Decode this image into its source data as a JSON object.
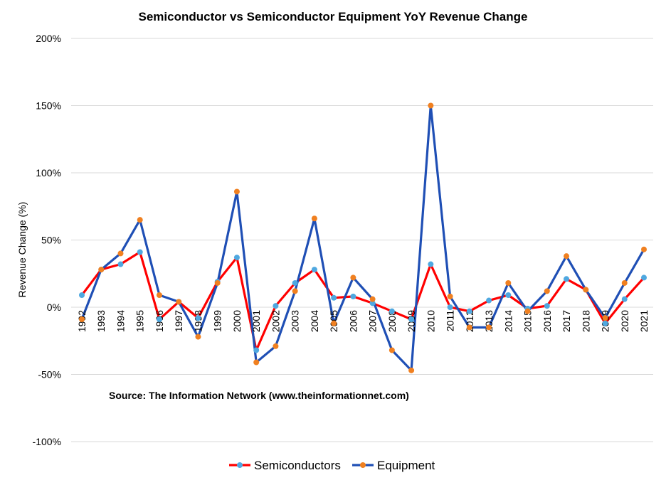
{
  "chart_data": {
    "type": "line",
    "title": "Semiconductor vs Semiconductor Equipment YoY Revenue Change",
    "xlabel": "",
    "ylabel": "Revenue   Change (%)",
    "ylim": [
      -100,
      200
    ],
    "ytick_values": [
      -100,
      -50,
      0,
      50,
      100,
      150,
      200
    ],
    "ytick_labels": [
      "-100%",
      "-50%",
      "0%",
      "50%",
      "100%",
      "150%",
      "200%"
    ],
    "grid": true,
    "legend_position": "bottom",
    "annotation": "Source: The Information Network (www.theinformationnet.com)",
    "categories": [
      "1992",
      "1993",
      "1994",
      "1995",
      "1996",
      "1997",
      "1998",
      "1999",
      "2000",
      "2001",
      "2002",
      "2003",
      "2004",
      "2005",
      "2006",
      "2007",
      "2008",
      "2009",
      "2010",
      "2011",
      "2012",
      "2013",
      "2014",
      "2015",
      "2016",
      "2017",
      "2018",
      "2019",
      "2020",
      "2021"
    ],
    "series": [
      {
        "name": "Semiconductors",
        "line_color": "#ff0000",
        "marker_color": "#4fa8e0",
        "values": [
          9,
          28,
          32,
          41,
          -9,
          4,
          -8,
          19,
          37,
          -32,
          1,
          18,
          28,
          7,
          8,
          3,
          -3,
          -9,
          32,
          0,
          -3,
          5,
          9,
          -1,
          1,
          21,
          13,
          -12,
          6,
          22
        ]
      },
      {
        "name": "Equipment",
        "line_color": "#1f4fb5",
        "marker_color": "#f08020",
        "values": [
          -9,
          28,
          40,
          65,
          9,
          4,
          -22,
          18,
          86,
          -41,
          -29,
          12,
          66,
          -12,
          22,
          6,
          -32,
          -47,
          150,
          8,
          -15,
          -15,
          18,
          -3,
          12,
          38,
          13,
          -8,
          18,
          43
        ]
      }
    ]
  }
}
